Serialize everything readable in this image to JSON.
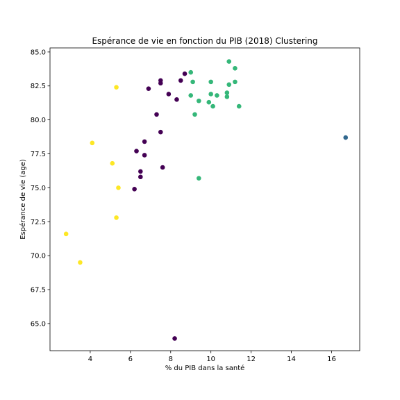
{
  "chart_data": {
    "type": "scatter",
    "title": "Espérance de vie en fonction du PIB (2018) Clustering",
    "xlabel": "% du PIB dans la santé",
    "ylabel": "Espérance de vie (age)",
    "xlim": [
      2.0,
      17.4
    ],
    "ylim": [
      63.0,
      85.3
    ],
    "xticks": [
      4,
      6,
      8,
      10,
      12,
      14,
      16
    ],
    "xtick_labels": [
      "4",
      "6",
      "8",
      "10",
      "12",
      "14",
      "16"
    ],
    "yticks": [
      65.0,
      67.5,
      70.0,
      72.5,
      75.0,
      77.5,
      80.0,
      82.5,
      85.0
    ],
    "ytick_labels": [
      "65.0",
      "67.5",
      "70.0",
      "72.5",
      "75.0",
      "77.5",
      "80.0",
      "82.5",
      "85.0"
    ],
    "grid": false,
    "legend": "none",
    "cluster_colors": [
      "#440154",
      "#31688e",
      "#35b779",
      "#fde725"
    ],
    "series": [
      {
        "cluster": 0,
        "color": "#440154",
        "x": [
          7.5,
          7.5,
          8.7,
          8.5,
          6.9,
          7.9,
          8.3,
          7.3,
          7.5,
          6.7,
          6.3,
          6.7,
          7.6,
          6.5,
          6.5,
          6.2,
          8.2
        ],
        "y": [
          82.9,
          82.7,
          83.4,
          82.9,
          82.3,
          81.9,
          81.5,
          80.4,
          79.1,
          78.4,
          77.7,
          77.4,
          76.5,
          76.2,
          75.8,
          74.9,
          63.9
        ]
      },
      {
        "cluster": 1,
        "color": "#31688e",
        "x": [
          16.7
        ],
        "y": [
          78.7
        ]
      },
      {
        "cluster": 2,
        "color": "#35b779",
        "x": [
          10.9,
          11.2,
          9.0,
          9.1,
          10.0,
          10.9,
          11.2,
          10.0,
          9.0,
          10.3,
          10.8,
          9.4,
          9.9,
          10.1,
          11.4,
          9.2,
          10.8,
          9.4
        ],
        "y": [
          84.3,
          83.8,
          83.5,
          82.8,
          82.8,
          82.6,
          82.8,
          81.9,
          81.8,
          81.8,
          82.0,
          81.4,
          81.3,
          81.0,
          81.0,
          80.4,
          81.7,
          75.7
        ]
      },
      {
        "cluster": 3,
        "color": "#fde725",
        "x": [
          5.3,
          4.1,
          5.1,
          5.4,
          5.3,
          2.8,
          3.5
        ],
        "y": [
          82.4,
          78.3,
          76.8,
          75.0,
          72.8,
          71.6,
          69.5
        ]
      }
    ]
  }
}
